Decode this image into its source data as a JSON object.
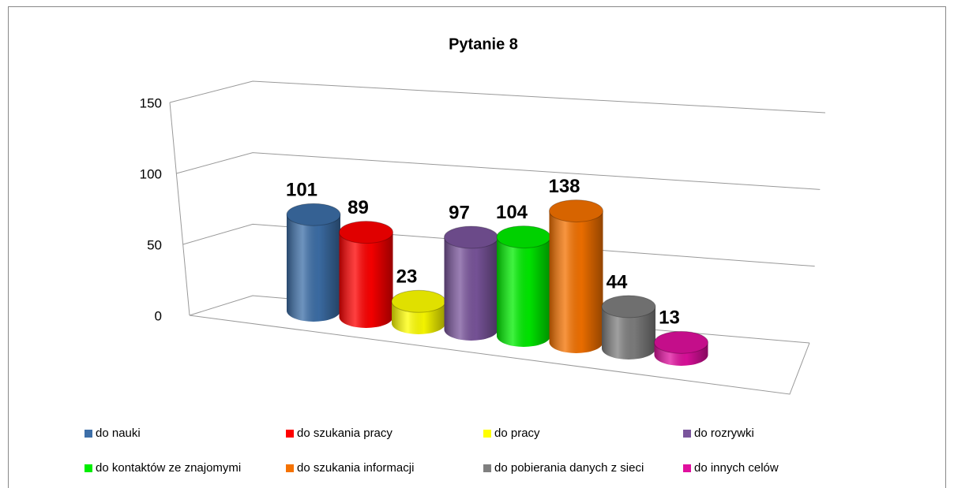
{
  "chart_data": {
    "type": "bar3d",
    "title": "Pytanie 8",
    "categories": [
      "do nauki",
      "do szukania pracy",
      "do pracy",
      "do rozrywki",
      "do kontaktów ze znajomymi",
      "do szukania informacji",
      "do pobierania danych z sieci",
      "do innych celów"
    ],
    "values": [
      101,
      89,
      23,
      97,
      104,
      138,
      44,
      13
    ],
    "colors": [
      "#3d6fa8",
      "#ff0000",
      "#ffff00",
      "#7a559c",
      "#00ee00",
      "#f57200",
      "#7f7f7f",
      "#e0109e"
    ],
    "ylim": [
      0,
      150
    ],
    "yticks": [
      0,
      50,
      100,
      150
    ],
    "grid": true,
    "legend": "bottom"
  }
}
